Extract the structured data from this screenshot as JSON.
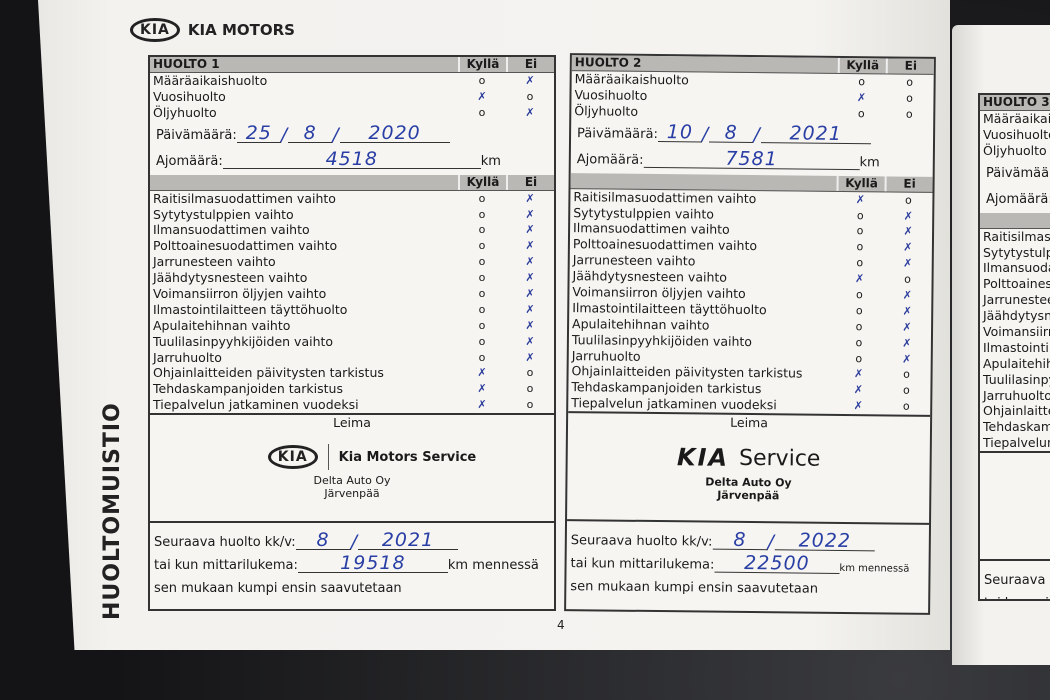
{
  "brand": {
    "logo": "KIA",
    "name": "KIA MOTORS"
  },
  "vertical_title": "HUOLTOMUISTIO",
  "page_number": "4",
  "labels": {
    "yes": "Kyllä",
    "no": "Ei",
    "date": "Päivämäärä:",
    "mileage": "Ajomäärä:",
    "km": "km",
    "stamp": "Leima",
    "next_service": "Seuraava huolto kk/v:",
    "or_odometer": "tai kun mittarilukema:",
    "km_by": "km mennessä",
    "whichever": "sen mukaan kumpi ensin saavutetaan"
  },
  "top_items": [
    "Määräaikaishuolto",
    "Vuosihuolto",
    "Öljyhuolto"
  ],
  "check_items": [
    "Raitisilmasuodattimen vaihto",
    "Sytytystulppien vaihto",
    "Ilmansuodattimen vaihto",
    "Polttoainesuodattimen vaihto",
    "Jarrunesteen vaihto",
    "Jäähdytysnesteen vaihto",
    "Voimansiirron öljyjen vaihto",
    "Ilmastointilaitteen täyttöhuolto",
    "Apulaitehihnan vaihto",
    "Tuulilasinpyyhkijöiden vaihto",
    "Jarruhuolto",
    "Ohjainlaitteiden päivitysten tarkistus",
    "Tehdaskampanjoiden tarkistus",
    "Tiepalvelun jatkaminen vuodeksi"
  ],
  "services": [
    {
      "title": "HUOLTO 1",
      "top_marks": [
        "Ei",
        "Kyllä",
        "Ei"
      ],
      "marks": [
        "Ei",
        "Ei",
        "Ei",
        "Ei",
        "Ei",
        "Ei",
        "Ei",
        "Ei",
        "Ei",
        "Ei",
        "Ei",
        "Kyllä",
        "Kyllä",
        "Kyllä"
      ],
      "date": {
        "day": "25",
        "month": "8",
        "year": "2020"
      },
      "mileage": "4518",
      "stamp": {
        "logo": "KIA",
        "name": "Kia Motors Service",
        "dealer": "Delta Auto Oy",
        "city": "Järvenpää"
      },
      "next": {
        "month": "8",
        "year": "2021",
        "km": "19518"
      }
    },
    {
      "title": "HUOLTO 2",
      "top_marks": [
        "",
        "Kyllä",
        ""
      ],
      "marks": [
        "Kyllä",
        "Ei",
        "Ei",
        "Ei",
        "Ei",
        "Kyllä",
        "Ei",
        "Ei",
        "Ei",
        "Ei",
        "Ei",
        "Kyllä",
        "Kyllä",
        "Kyllä"
      ],
      "date": {
        "day": "10",
        "month": "8",
        "year": "2021"
      },
      "mileage": "7581",
      "stamp": {
        "logo": "KIA",
        "name": "Service",
        "dealer": "Delta Auto Oy",
        "city": "Järvenpää"
      },
      "next": {
        "month": "8",
        "year": "2022",
        "km": "22500"
      }
    },
    {
      "title": "HUOLTO 3",
      "partial": true
    }
  ],
  "colors": {
    "ink": "#2a3fa5",
    "header_gray": "#b9b8b5",
    "paper": "#f4f3f0"
  }
}
